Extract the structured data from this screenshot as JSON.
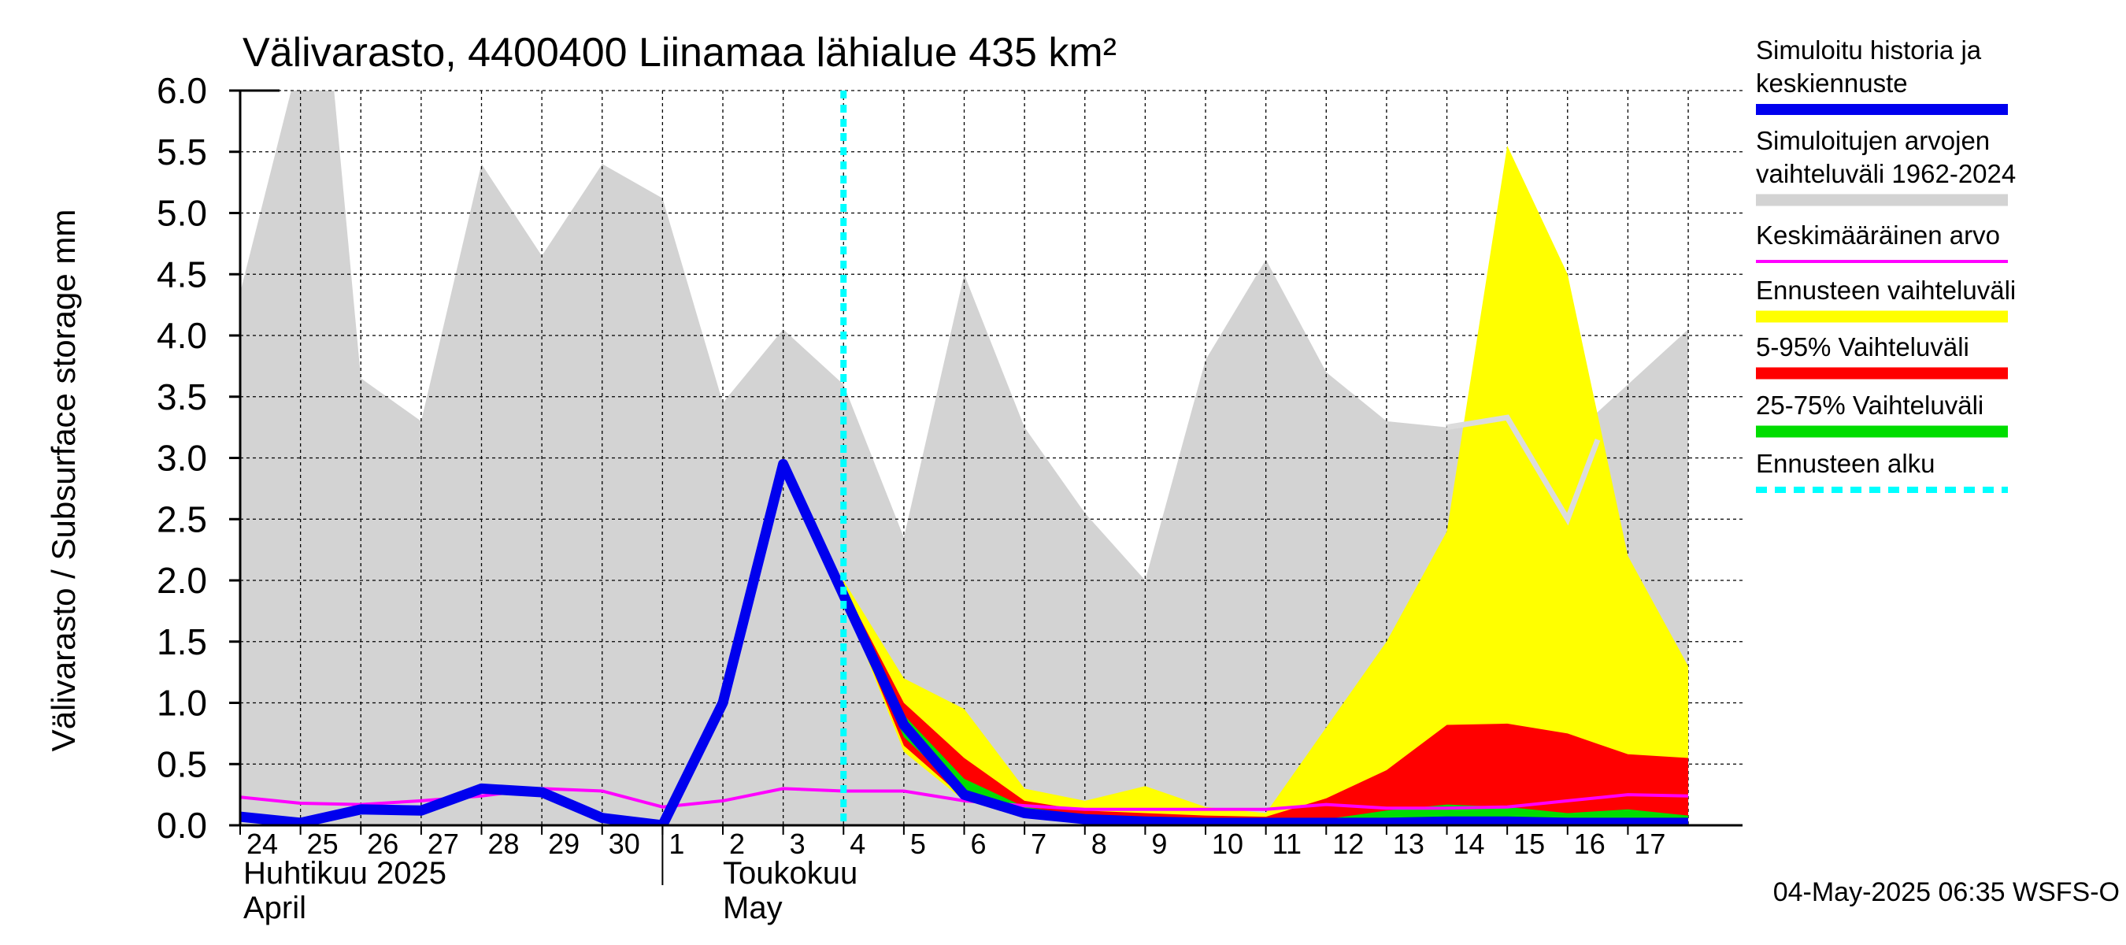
{
  "chart_data": {
    "type": "area",
    "title": "Välivarasto, 4400400 Liinamaa lähialue 435 km²",
    "ylabel": "Välivarasto / Subsurface storage  mm",
    "ylim": [
      0,
      6
    ],
    "yticks": [
      "0.0",
      "0.5",
      "1.0",
      "1.5",
      "2.0",
      "2.5",
      "3.0",
      "3.5",
      "4.0",
      "4.5",
      "5.0",
      "5.5",
      "6.0"
    ],
    "x_day_labels": [
      "24",
      "25",
      "26",
      "27",
      "28",
      "29",
      "30",
      "1",
      "2",
      "3",
      "4",
      "5",
      "6",
      "7",
      "8",
      "9",
      "10",
      "11",
      "12",
      "13",
      "14",
      "15",
      "16",
      "17"
    ],
    "month_labels": [
      {
        "fi": "Huhtikuu  2025",
        "en": "April"
      },
      {
        "fi": "Toukokuu",
        "en": "May"
      }
    ],
    "x_dates": [
      "2025-04-24",
      "2025-04-25",
      "2025-04-26",
      "2025-04-27",
      "2025-04-28",
      "2025-04-29",
      "2025-04-30",
      "2025-05-01",
      "2025-05-02",
      "2025-05-03",
      "2025-05-04",
      "2025-05-05",
      "2025-05-06",
      "2025-05-07",
      "2025-05-08",
      "2025-05-09",
      "2025-05-10",
      "2025-05-11",
      "2025-05-12",
      "2025-05-13",
      "2025-05-14",
      "2025-05-15",
      "2025-05-16",
      "2025-05-17",
      "2025-05-18"
    ],
    "forecast_start": "2025-05-04",
    "grid": true,
    "legend_position": "right",
    "legend": [
      {
        "label": "Simuloitu historia ja keskiennuste",
        "color": "#0000ee",
        "style": "thick"
      },
      {
        "label": "Simuloitujen arvojen vaihteluväli 1962-2024",
        "color": "#d3d3d3",
        "style": "band"
      },
      {
        "label": "Keskimääräinen arvo",
        "color": "#ff00ff",
        "style": "line"
      },
      {
        "label": "Ennusteen vaihteluväli",
        "color": "#ffff00",
        "style": "band"
      },
      {
        "label": "5-95% Vaihteluväli",
        "color": "#ff0000",
        "style": "band"
      },
      {
        "label": "25-75% Vaihteluväli",
        "color": "#00dd00",
        "style": "band"
      },
      {
        "label": "Ennusteen alku",
        "color": "#00ffff",
        "style": "dashed"
      }
    ],
    "series": {
      "historical_range": {
        "x": [
          "2025-04-24",
          "2025-04-25",
          "2025-04-25 12:00",
          "2025-04-26",
          "2025-04-27",
          "2025-04-28",
          "2025-04-29",
          "2025-04-30",
          "2025-05-01",
          "2025-05-02",
          "2025-05-03",
          "2025-05-04",
          "2025-05-05",
          "2025-05-06",
          "2025-05-07",
          "2025-05-08",
          "2025-05-09",
          "2025-05-10",
          "2025-05-11",
          "2025-05-12",
          "2025-05-13",
          "2025-05-14",
          "2025-05-15",
          "2025-05-16",
          "2025-05-17",
          "2025-05-18"
        ],
        "upper": [
          4.35,
          6.3,
          6.3,
          3.65,
          3.3,
          5.4,
          4.65,
          5.4,
          5.12,
          3.45,
          4.05,
          3.6,
          2.35,
          4.5,
          3.25,
          2.55,
          2.0,
          3.8,
          4.62,
          3.7,
          3.3,
          3.25,
          3.3,
          3.15,
          3.6,
          4.05
        ],
        "lower": [
          0,
          0,
          0,
          0,
          0,
          0,
          0,
          0,
          0,
          0,
          0,
          0,
          0,
          0,
          0,
          0,
          0,
          0,
          0,
          0,
          0,
          0,
          0,
          0,
          0,
          0
        ]
      },
      "historical_range_line": {
        "x": [
          "2025-05-14",
          "2025-05-15",
          "2025-05-16",
          "2025-05-16 12:00"
        ],
        "values": [
          3.25,
          3.33,
          2.5,
          3.15
        ]
      },
      "forecast_range": {
        "x": [
          "2025-05-04",
          "2025-05-05",
          "2025-05-06",
          "2025-05-07",
          "2025-05-08",
          "2025-05-09",
          "2025-05-10",
          "2025-05-11",
          "2025-05-12",
          "2025-05-13",
          "2025-05-14",
          "2025-05-15",
          "2025-05-16",
          "2025-05-17",
          "2025-05-18"
        ],
        "upper": [
          2.0,
          1.2,
          0.95,
          0.3,
          0.2,
          0.32,
          0.15,
          0.1,
          0.8,
          1.5,
          2.4,
          5.55,
          4.5,
          2.2,
          1.3
        ],
        "lower": [
          1.85,
          0.6,
          0.2,
          0.12,
          0.06,
          0.04,
          0.02,
          0.01,
          0.01,
          0.01,
          0.01,
          0.01,
          0.01,
          0.01,
          0.01
        ]
      },
      "p5_95": {
        "x": [
          "2025-05-04",
          "2025-05-05",
          "2025-05-06",
          "2025-05-07",
          "2025-05-08",
          "2025-05-09",
          "2025-05-10",
          "2025-05-11",
          "2025-05-12",
          "2025-05-13",
          "2025-05-14",
          "2025-05-15",
          "2025-05-16",
          "2025-05-17",
          "2025-05-18"
        ],
        "upper": [
          1.95,
          1.0,
          0.55,
          0.2,
          0.12,
          0.1,
          0.08,
          0.07,
          0.22,
          0.45,
          0.82,
          0.83,
          0.75,
          0.58,
          0.55
        ],
        "lower": [
          1.85,
          0.65,
          0.22,
          0.12,
          0.06,
          0.04,
          0.03,
          0.02,
          0.02,
          0.02,
          0.02,
          0.02,
          0.02,
          0.02,
          0.02
        ]
      },
      "p25_75": {
        "x": [
          "2025-05-04",
          "2025-05-05",
          "2025-05-06",
          "2025-05-07",
          "2025-05-08",
          "2025-05-09",
          "2025-05-10",
          "2025-05-11",
          "2025-05-12",
          "2025-05-13",
          "2025-05-14",
          "2025-05-15",
          "2025-05-16",
          "2025-05-17",
          "2025-05-18"
        ],
        "upper": [
          1.92,
          0.9,
          0.38,
          0.15,
          0.08,
          0.05,
          0.04,
          0.03,
          0.05,
          0.12,
          0.17,
          0.15,
          0.1,
          0.13,
          0.08
        ],
        "lower": [
          1.86,
          0.72,
          0.26,
          0.12,
          0.06,
          0.03,
          0.02,
          0.02,
          0.02,
          0.02,
          0.02,
          0.02,
          0.02,
          0.02,
          0.02
        ]
      },
      "mean": {
        "x": [
          "2025-04-24",
          "2025-04-25",
          "2025-04-26",
          "2025-04-27",
          "2025-04-28",
          "2025-04-29",
          "2025-04-30",
          "2025-05-01",
          "2025-05-02",
          "2025-05-03",
          "2025-05-04",
          "2025-05-05",
          "2025-05-06",
          "2025-05-07",
          "2025-05-08",
          "2025-05-09",
          "2025-05-10",
          "2025-05-11",
          "2025-05-12",
          "2025-05-13",
          "2025-05-14",
          "2025-05-15",
          "2025-05-16",
          "2025-05-17",
          "2025-05-18"
        ],
        "values": [
          0.23,
          0.18,
          0.17,
          0.2,
          0.24,
          0.3,
          0.28,
          0.15,
          0.2,
          0.3,
          0.28,
          0.28,
          0.2,
          0.16,
          0.13,
          0.13,
          0.13,
          0.13,
          0.17,
          0.14,
          0.14,
          0.15,
          0.2,
          0.25,
          0.24
        ]
      },
      "simulated": {
        "x": [
          "2025-04-24",
          "2025-04-25",
          "2025-04-26",
          "2025-04-27",
          "2025-04-28",
          "2025-04-29",
          "2025-04-30",
          "2025-05-01",
          "2025-05-02",
          "2025-05-03",
          "2025-05-04",
          "2025-05-05",
          "2025-05-06",
          "2025-05-07",
          "2025-05-08",
          "2025-05-09",
          "2025-05-10",
          "2025-05-11",
          "2025-05-12",
          "2025-05-13",
          "2025-05-14",
          "2025-05-15",
          "2025-05-16",
          "2025-05-17",
          "2025-05-18"
        ],
        "values": [
          0.07,
          0.02,
          0.13,
          0.12,
          0.3,
          0.27,
          0.06,
          0.0,
          1.0,
          2.95,
          1.88,
          0.82,
          0.25,
          0.1,
          0.05,
          0.03,
          0.02,
          0.02,
          0.02,
          0.02,
          0.03,
          0.03,
          0.02,
          0.02,
          0.02
        ]
      }
    }
  },
  "footer": {
    "timestamp": "04-May-2025 06:35 WSFS-O"
  }
}
